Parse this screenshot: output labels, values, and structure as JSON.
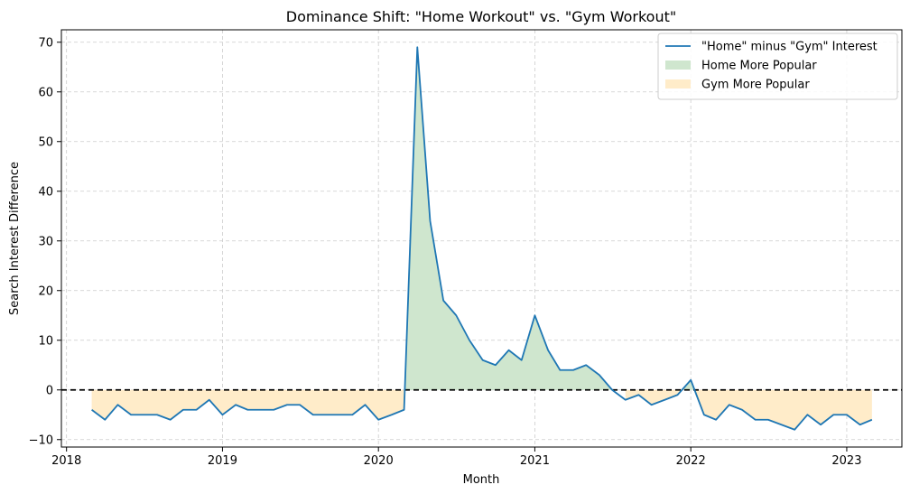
{
  "chart_data": {
    "type": "line",
    "title": "Dominance Shift: \"Home Workout\" vs. \"Gym Workout\"",
    "xlabel": "Month",
    "ylabel": "Search Interest Difference",
    "xlim": [
      "2017-12-20",
      "2023-05-10"
    ],
    "ylim": [
      -11.5,
      72.5
    ],
    "x_ticks": [
      "2018-01-01",
      "2019-01-01",
      "2020-01-01",
      "2021-01-01",
      "2022-01-01",
      "2023-01-01"
    ],
    "x_tick_labels": [
      "2018",
      "2019",
      "2020",
      "2021",
      "2022",
      "2023"
    ],
    "y_ticks": [
      -10,
      0,
      10,
      20,
      30,
      40,
      50,
      60,
      70
    ],
    "y_tick_labels": [
      "−10",
      "0",
      "10",
      "20",
      "30",
      "40",
      "50",
      "60",
      "70"
    ],
    "grid": true,
    "legend_position": "top-right",
    "zero_line": 0,
    "colors": {
      "line": "#1f77b4",
      "positive_fill": "#cfe6ce",
      "negative_fill": "#ffecc9",
      "zero_line": "#000000",
      "grid": "#cccccc"
    },
    "series": [
      {
        "name": "\"Home\" minus \"Gym\" Interest",
        "x": [
          "2018-03",
          "2018-04",
          "2018-05",
          "2018-06",
          "2018-07",
          "2018-08",
          "2018-09",
          "2018-10",
          "2018-11",
          "2018-12",
          "2019-01",
          "2019-02",
          "2019-03",
          "2019-04",
          "2019-05",
          "2019-06",
          "2019-07",
          "2019-08",
          "2019-09",
          "2019-10",
          "2019-11",
          "2019-12",
          "2020-01",
          "2020-02",
          "2020-03",
          "2020-04",
          "2020-05",
          "2020-06",
          "2020-07",
          "2020-08",
          "2020-09",
          "2020-10",
          "2020-11",
          "2020-12",
          "2021-01",
          "2021-02",
          "2021-03",
          "2021-04",
          "2021-05",
          "2021-06",
          "2021-07",
          "2021-08",
          "2021-09",
          "2021-10",
          "2021-11",
          "2021-12",
          "2022-01",
          "2022-02",
          "2022-03",
          "2022-04",
          "2022-05",
          "2022-06",
          "2022-07",
          "2022-08",
          "2022-09",
          "2022-10",
          "2022-11",
          "2022-12",
          "2023-01",
          "2023-02",
          "2023-03"
        ],
        "y": [
          -4,
          -6,
          -3,
          -5,
          -5,
          -5,
          -6,
          -4,
          -4,
          -2,
          -5,
          -3,
          -4,
          -4,
          -4,
          -3,
          -3,
          -5,
          -5,
          -5,
          -5,
          -3,
          -6,
          -5,
          -4,
          69,
          34,
          18,
          15,
          10,
          6,
          5,
          8,
          6,
          15,
          8,
          4,
          4,
          5,
          3,
          0,
          -2,
          -1,
          -3,
          -2,
          -1,
          2,
          -5,
          -6,
          -3,
          -4,
          -6,
          -6,
          -7,
          -8,
          -5,
          -7,
          -5,
          -5,
          -7,
          -6
        ]
      }
    ],
    "legend": [
      {
        "label": "\"Home\" minus \"Gym\" Interest",
        "kind": "line"
      },
      {
        "label": "Home More Popular",
        "kind": "patch-positive"
      },
      {
        "label": "Gym More Popular",
        "kind": "patch-negative"
      }
    ]
  }
}
